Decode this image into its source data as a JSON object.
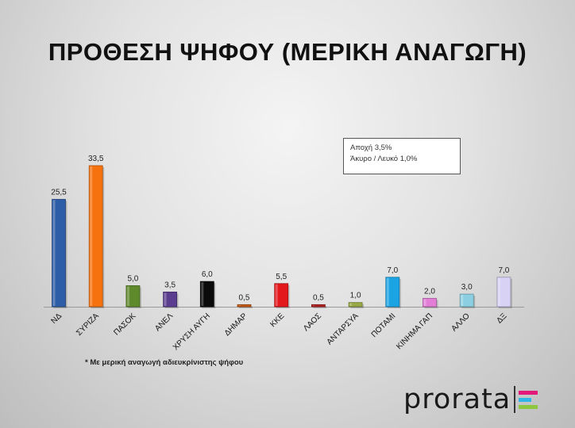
{
  "title": "ΠΡΟΘΕΣΗ ΨΗΦΟΥ (ΜΕΡΙΚΗ ΑΝΑΓΩΓΗ)",
  "note": {
    "line1": "Αποχή 3,5%",
    "line2": "Άκυρο / Λευκό 1,0%"
  },
  "footnote": "* Με μερική αναγωγή αδιευκρίνιστης ψήφου",
  "logo": {
    "text": "prorata",
    "mark_colors": [
      "#e2197a",
      "#2fb5e8",
      "#8dc63f"
    ]
  },
  "chart_data": {
    "type": "bar",
    "title": "ΠΡΟΘΕΣΗ ΨΗΦΟΥ (ΜΕΡΙΚΗ ΑΝΑΓΩΓΗ)",
    "categories": [
      "ΝΔ",
      "ΣΥΡΙΖΑ",
      "ΠΑΣΟΚ",
      "ΑΝΕΛ",
      "ΧΡΥΣΗ ΑΥΓΗ",
      "ΔΗΜΑΡ",
      "ΚΚΕ",
      "ΛΑΟΣ",
      "ΑΝΤΑΡΣΥΑ",
      "ΠΟΤΑΜΙ",
      "ΚΙΝΗΜΑ ΓΑΠ",
      "ΑΛΛΟ",
      "ΔΞ"
    ],
    "values": [
      25.5,
      33.5,
      5.0,
      3.5,
      6.0,
      0.5,
      5.5,
      0.5,
      1.0,
      7.0,
      2.0,
      3.0,
      7.0
    ],
    "value_labels": [
      "25,5",
      "33,5",
      "5,0",
      "3,5",
      "6,0",
      "0,5",
      "5,5",
      "0,5",
      "1,0",
      "7,0",
      "2,0",
      "3,0",
      "7,0"
    ],
    "colors": [
      "#2e5da8",
      "#f5720e",
      "#5f8a2c",
      "#5b3d8f",
      "#0a0a0a",
      "#c75b15",
      "#e3181c",
      "#b32020",
      "#99a844",
      "#1ba4e4",
      "#e27ed6",
      "#8ccfe2",
      "#d8d2f5"
    ],
    "xlabel": "",
    "ylabel": "",
    "ylim": [
      0,
      35
    ]
  }
}
